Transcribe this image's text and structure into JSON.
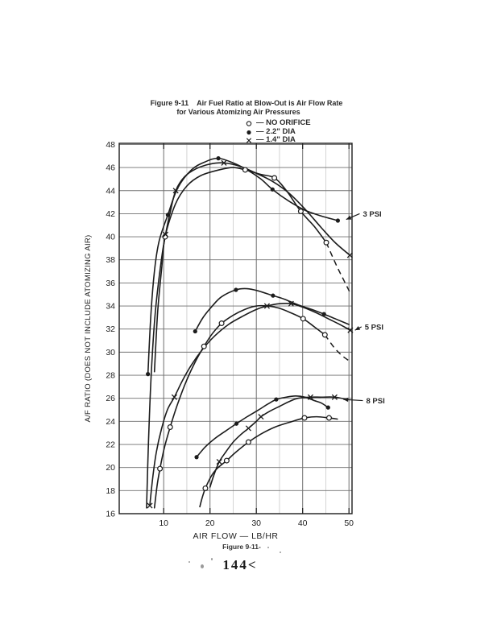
{
  "page": {
    "ink": "#1c1c1c",
    "grid_color": "#6f6f6f",
    "grid_minor_color": "#c9c9c9",
    "background": "#ffffff"
  },
  "header": {
    "figure_label": "Figure 9-11",
    "title_line1": "Air Fuel Ratio at Blow-Out is Air Flow Rate",
    "title_line2": "for Various Atomizing Air Pressures"
  },
  "legend": {
    "items": [
      {
        "marker": "circle-open",
        "text": "— NO ORIFICE"
      },
      {
        "marker": "circle-filled",
        "text": "— 2.2\" DIA"
      },
      {
        "marker": "x",
        "text": "— 1.4\" DIA"
      }
    ]
  },
  "footer": {
    "caption": "Figure 9-11-",
    "page_number": "144<"
  },
  "chart_data": {
    "type": "line",
    "title": "Air Fuel Ratio at Blow-Out is Air Flow Rate for Various Atomizing Air Pressures",
    "xlabel": "AIR FLOW — LB/HR",
    "ylabel": "A/F RATIO (DOES NOT INCLUDE ATOMIZING AIR)",
    "xlim": [
      0,
      51
    ],
    "ylim": [
      16,
      48
    ],
    "x_ticks": [
      10,
      20,
      30,
      40,
      50
    ],
    "x_minor_gridlines": [
      15,
      25,
      35,
      45
    ],
    "y_ticks": [
      16,
      18,
      20,
      22,
      24,
      26,
      28,
      30,
      32,
      34,
      36,
      38,
      40,
      42,
      44,
      46,
      48
    ],
    "grid": true,
    "legend_position": "top-right",
    "groups": [
      {
        "label": "3 PSI",
        "label_at": [
          53.0,
          42.0
        ],
        "arrow_to": [
          49.4,
          41.5
        ],
        "series": [
          {
            "name": "NO ORIFICE",
            "marker": "circle-open",
            "points": [
              [
                8,
                28.3
              ],
              [
                8.7,
                33.5
              ],
              [
                9.6,
                37.4
              ],
              [
                10.3,
                40.0
              ],
              [
                12.5,
                42.8
              ],
              [
                15,
                44.4
              ],
              [
                18,
                45.3
              ],
              [
                22,
                45.8
              ],
              [
                25,
                46.0
              ],
              [
                27.6,
                45.8
              ],
              [
                31,
                45.4
              ],
              [
                33.9,
                45.1
              ],
              [
                36.5,
                44.0
              ],
              [
                39.6,
                42.2
              ],
              [
                42.5,
                40.9
              ],
              [
                45.1,
                39.5
              ]
            ],
            "marker_points": [
              [
                10.3,
                40.0
              ],
              [
                27.6,
                45.8
              ],
              [
                33.9,
                45.1
              ],
              [
                39.6,
                42.2
              ],
              [
                45.1,
                39.5
              ]
            ],
            "dashed_tail": [
              [
                45.1,
                39.5
              ],
              [
                47.2,
                37.6
              ],
              [
                48.8,
                36.3
              ],
              [
                50.3,
                35.1
              ]
            ]
          },
          {
            "name": "2.2\" DIA",
            "marker": "circle-filled",
            "points": [
              [
                6.6,
                28.1
              ],
              [
                7.2,
                33.0
              ],
              [
                8.0,
                37.0
              ],
              [
                9.0,
                39.6
              ],
              [
                10.9,
                41.9
              ],
              [
                13,
                44.2
              ],
              [
                16,
                45.8
              ],
              [
                19,
                46.5
              ],
              [
                21.8,
                46.8
              ],
              [
                25,
                46.4
              ],
              [
                28,
                45.8
              ],
              [
                31,
                45.0
              ],
              [
                33.5,
                44.1
              ],
              [
                37,
                43.1
              ],
              [
                40.5,
                42.3
              ],
              [
                44,
                41.8
              ],
              [
                47.6,
                41.4
              ]
            ],
            "marker_points": [
              [
                6.6,
                28.1
              ],
              [
                10.9,
                41.9
              ],
              [
                21.8,
                46.8
              ],
              [
                33.5,
                44.1
              ],
              [
                47.6,
                41.4
              ]
            ],
            "dashed_tail": []
          },
          {
            "name": "1.4\" DIA",
            "marker": "x",
            "points": [
              [
                6.3,
                16.5
              ],
              [
                6.7,
                22.0
              ],
              [
                7.3,
                28.0
              ],
              [
                8.2,
                33.5
              ],
              [
                9.5,
                38.0
              ],
              [
                10.4,
                40.2
              ],
              [
                11.5,
                42.3
              ],
              [
                12.6,
                44.0
              ],
              [
                14.5,
                45.2
              ],
              [
                17,
                45.9
              ],
              [
                20,
                46.3
              ],
              [
                23,
                46.4
              ],
              [
                26.5,
                46.1
              ],
              [
                30,
                45.5
              ],
              [
                33.5,
                44.8
              ],
              [
                37,
                43.8
              ],
              [
                40.5,
                42.4
              ],
              [
                44,
                40.8
              ],
              [
                47,
                39.5
              ],
              [
                50.2,
                38.4
              ]
            ],
            "marker_points": [
              [
                10.4,
                40.2
              ],
              [
                12.6,
                44.0
              ],
              [
                23,
                46.4
              ],
              [
                50.2,
                38.4
              ]
            ],
            "dashed_tail": []
          }
        ]
      },
      {
        "label": "5 PSI",
        "label_at": [
          53.4,
          32.2
        ],
        "arrow_to": [
          51.3,
          31.9
        ],
        "series": [
          {
            "name": "NO ORIFICE",
            "marker": "circle-open",
            "points": [
              [
                8,
                16.5
              ],
              [
                8.6,
                18.5
              ],
              [
                9.2,
                19.9
              ],
              [
                10.2,
                21.8
              ],
              [
                11.4,
                23.5
              ],
              [
                13,
                25.5
              ],
              [
                15,
                27.6
              ],
              [
                17,
                29.3
              ],
              [
                18.7,
                30.5
              ],
              [
                20.5,
                31.6
              ],
              [
                22.5,
                32.5
              ],
              [
                25,
                33.2
              ],
              [
                27.5,
                33.7
              ],
              [
                30,
                34.0
              ],
              [
                32.5,
                34.0
              ],
              [
                35,
                33.8
              ],
              [
                37.5,
                33.4
              ],
              [
                40.1,
                32.9
              ],
              [
                42.5,
                32.2
              ],
              [
                44.8,
                31.5
              ]
            ],
            "marker_points": [
              [
                9.2,
                19.9
              ],
              [
                11.4,
                23.5
              ],
              [
                18.7,
                30.5
              ],
              [
                22.5,
                32.5
              ],
              [
                40.1,
                32.9
              ],
              [
                44.8,
                31.5
              ]
            ],
            "dashed_tail": [
              [
                44.8,
                31.5
              ],
              [
                46.8,
                30.4
              ],
              [
                48.5,
                29.7
              ],
              [
                50.2,
                29.2
              ]
            ]
          },
          {
            "name": "2.2\" DIA",
            "marker": "circle-filled",
            "points": [
              [
                16.8,
                31.8
              ],
              [
                18.5,
                33.0
              ],
              [
                20.5,
                34.0
              ],
              [
                22.5,
                34.8
              ],
              [
                25.6,
                35.4
              ],
              [
                28,
                35.5
              ],
              [
                30.5,
                35.3
              ],
              [
                33.6,
                34.9
              ],
              [
                36,
                34.6
              ],
              [
                39,
                34.1
              ],
              [
                42,
                33.7
              ],
              [
                44.6,
                33.3
              ],
              [
                47,
                32.9
              ],
              [
                50,
                32.4
              ]
            ],
            "marker_points": [
              [
                16.8,
                31.8
              ],
              [
                25.6,
                35.4
              ],
              [
                33.6,
                34.9
              ],
              [
                44.6,
                33.3
              ]
            ],
            "dashed_tail": []
          },
          {
            "name": "1.4\" DIA",
            "marker": "x",
            "points": [
              [
                7,
                16.7
              ],
              [
                7.6,
                19.0
              ],
              [
                8.4,
                21.3
              ],
              [
                9.5,
                23.3
              ],
              [
                10.8,
                25.0
              ],
              [
                12.3,
                26.1
              ],
              [
                14,
                27.5
              ],
              [
                16,
                28.9
              ],
              [
                18.5,
                30.3
              ],
              [
                21,
                31.4
              ],
              [
                24,
                32.4
              ],
              [
                27,
                33.1
              ],
              [
                30,
                33.7
              ],
              [
                32.3,
                34.0
              ],
              [
                35,
                34.2
              ],
              [
                37.5,
                34.2
              ],
              [
                40,
                33.9
              ],
              [
                43,
                33.4
              ],
              [
                46,
                32.8
              ],
              [
                48,
                32.4
              ],
              [
                50.3,
                31.9
              ]
            ],
            "marker_points": [
              [
                7,
                16.7
              ],
              [
                12.3,
                26.1
              ],
              [
                32.3,
                34.0
              ],
              [
                37.5,
                34.2
              ],
              [
                50.3,
                31.9
              ]
            ],
            "dashed_tail": []
          }
        ]
      },
      {
        "label": "8 PSI",
        "label_at": [
          53.7,
          25.8
        ],
        "arrow_to": [
          48.8,
          25.9
        ],
        "series": [
          {
            "name": "NO ORIFICE",
            "marker": "circle-open",
            "points": [
              [
                17.8,
                16.6
              ],
              [
                18.4,
                17.5
              ],
              [
                19,
                18.2
              ],
              [
                20.2,
                19.2
              ],
              [
                21.5,
                19.9
              ],
              [
                23.6,
                20.6
              ],
              [
                25.5,
                21.3
              ],
              [
                28.3,
                22.2
              ],
              [
                31,
                22.9
              ],
              [
                34,
                23.5
              ],
              [
                37,
                23.9
              ],
              [
                40.4,
                24.3
              ],
              [
                43,
                24.4
              ],
              [
                45.7,
                24.3
              ],
              [
                47.5,
                24.2
              ]
            ],
            "marker_points": [
              [
                19,
                18.2
              ],
              [
                23.6,
                20.6
              ],
              [
                28.3,
                22.2
              ],
              [
                40.4,
                24.3
              ],
              [
                45.7,
                24.3
              ]
            ],
            "dashed_tail": []
          },
          {
            "name": "2.2\" DIA",
            "marker": "circle-filled",
            "points": [
              [
                17.1,
                20.9
              ],
              [
                19,
                21.8
              ],
              [
                21,
                22.5
              ],
              [
                23.5,
                23.2
              ],
              [
                25.7,
                23.8
              ],
              [
                28,
                24.4
              ],
              [
                30.5,
                25.0
              ],
              [
                32.5,
                25.5
              ],
              [
                34.3,
                25.9
              ],
              [
                36.5,
                26.1
              ],
              [
                38.5,
                26.2
              ],
              [
                40.5,
                26.1
              ],
              [
                42.5,
                25.8
              ],
              [
                44,
                25.6
              ],
              [
                45.5,
                25.2
              ]
            ],
            "marker_points": [
              [
                17.1,
                20.9
              ],
              [
                25.7,
                23.8
              ],
              [
                34.3,
                25.9
              ],
              [
                45.5,
                25.2
              ]
            ],
            "dashed_tail": []
          },
          {
            "name": "1.4\" DIA",
            "marker": "x",
            "points": [
              [
                20,
                18.3
              ],
              [
                20.8,
                19.3
              ],
              [
                22,
                20.5
              ],
              [
                23.5,
                21.4
              ],
              [
                25,
                22.2
              ],
              [
                26.5,
                22.8
              ],
              [
                28.3,
                23.4
              ],
              [
                30,
                24.0
              ],
              [
                31,
                24.4
              ],
              [
                33,
                24.9
              ],
              [
                35,
                25.3
              ],
              [
                37,
                25.7
              ],
              [
                39,
                26.0
              ],
              [
                41.7,
                26.1
              ],
              [
                44,
                26.1
              ],
              [
                46.9,
                26.1
              ],
              [
                49.5,
                25.9
              ]
            ],
            "marker_points": [
              [
                22,
                20.5
              ],
              [
                28.3,
                23.4
              ],
              [
                31,
                24.4
              ],
              [
                41.7,
                26.1
              ],
              [
                46.9,
                26.1
              ]
            ],
            "dashed_tail": []
          }
        ]
      }
    ]
  }
}
